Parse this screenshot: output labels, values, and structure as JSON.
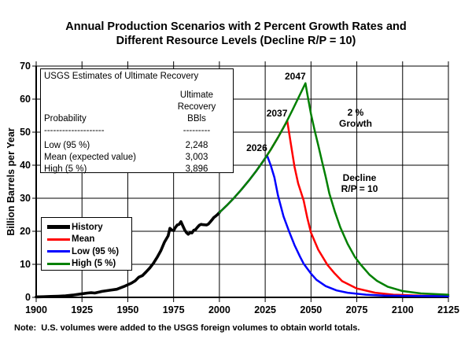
{
  "title": {
    "line1": "Annual Production Scenarios with 2 Percent Growth Rates and",
    "line2": "Different Resource Levels (Decline R/P = 10)"
  },
  "y_axis_label": "Billion Barrels per Year",
  "info_box": {
    "title": "USGS Estimates of Ultimate Recovery",
    "col1_header": "Probability",
    "col2_header_line1": "Ultimate Recovery",
    "col2_header_line2": "BBls",
    "col1_dashes": "--------------------",
    "col2_dashes": "---------",
    "rows": [
      {
        "label": "Low (95 %)",
        "value": "2,248"
      },
      {
        "label": "Mean (expected value)",
        "value": "3,003"
      },
      {
        "label": "High (5 %)",
        "value": "3,896"
      }
    ]
  },
  "legend": {
    "items": [
      {
        "label": "History",
        "color": "#000000",
        "thickness": 5
      },
      {
        "label": "Mean",
        "color": "#FF0000",
        "thickness": 3
      },
      {
        "label": "Low (95 %)",
        "color": "#0000FF",
        "thickness": 3
      },
      {
        "label": "High (5 %)",
        "color": "#008000",
        "thickness": 3
      }
    ]
  },
  "annotations": {
    "growth_line1": "2 %",
    "growth_line2": "Growth",
    "decline_line1": "Decline",
    "decline_line2": "R/P = 10"
  },
  "note": "Note:  U.S. volumes were added to the USGS foreign volumes to obtain world totals.",
  "colors": {
    "history": "#000000",
    "mean": "#FF0000",
    "low": "#0000FF",
    "high": "#008000",
    "grid": "#000000",
    "axis": "#000000"
  },
  "chart_data": {
    "type": "line",
    "title": "Annual Production Scenarios with 2 Percent Growth Rates and Different Resource Levels (Decline R/P = 10)",
    "xlabel": "",
    "ylabel": "Billion Barrels per Year",
    "xlim": [
      1900,
      2125
    ],
    "ylim": [
      0,
      70
    ],
    "x_ticks": [
      1900,
      1925,
      1950,
      1975,
      2000,
      2025,
      2050,
      2075,
      2100,
      2125
    ],
    "y_ticks": [
      0,
      10,
      20,
      30,
      40,
      50,
      60,
      70
    ],
    "grid": true,
    "legend_position": "middle-left",
    "growth_rate_percent": 2,
    "decline_rp_ratio": 10,
    "series": [
      {
        "name": "History",
        "color": "#000000",
        "width": 3.6,
        "points": [
          [
            1900,
            0.15
          ],
          [
            1904,
            0.2
          ],
          [
            1908,
            0.28
          ],
          [
            1912,
            0.35
          ],
          [
            1916,
            0.45
          ],
          [
            1920,
            0.7
          ],
          [
            1924,
            1.0
          ],
          [
            1928,
            1.3
          ],
          [
            1930,
            1.4
          ],
          [
            1932,
            1.3
          ],
          [
            1936,
            1.8
          ],
          [
            1940,
            2.15
          ],
          [
            1944,
            2.45
          ],
          [
            1948,
            3.3
          ],
          [
            1950,
            3.8
          ],
          [
            1952,
            4.3
          ],
          [
            1954,
            5.0
          ],
          [
            1956,
            6.1
          ],
          [
            1958,
            6.6
          ],
          [
            1960,
            7.7
          ],
          [
            1962,
            8.9
          ],
          [
            1964,
            10.3
          ],
          [
            1966,
            12.1
          ],
          [
            1968,
            14.1
          ],
          [
            1970,
            16.7
          ],
          [
            1972,
            18.6
          ],
          [
            1973,
            20.9
          ],
          [
            1974,
            20.4
          ],
          [
            1975,
            20.2
          ],
          [
            1976,
            21.2
          ],
          [
            1977,
            21.9
          ],
          [
            1978,
            22.1
          ],
          [
            1979,
            22.9
          ],
          [
            1980,
            21.7
          ],
          [
            1981,
            20.5
          ],
          [
            1982,
            19.6
          ],
          [
            1983,
            19.1
          ],
          [
            1984,
            19.6
          ],
          [
            1985,
            19.5
          ],
          [
            1986,
            20.3
          ],
          [
            1987,
            20.5
          ],
          [
            1988,
            21.2
          ],
          [
            1989,
            21.8
          ],
          [
            1990,
            22.1
          ],
          [
            1991,
            22.0
          ],
          [
            1993,
            21.9
          ],
          [
            1994,
            22.2
          ],
          [
            1995,
            22.8
          ],
          [
            1996,
            23.5
          ],
          [
            1997,
            24.2
          ],
          [
            1998,
            24.6
          ],
          [
            1999,
            25.1
          ],
          [
            2000,
            25.7
          ]
        ]
      },
      {
        "name": "Mean",
        "color": "#FF0000",
        "width": 2.5,
        "peak_label": "2037",
        "peak_year": 2037,
        "peak_value": 53.5,
        "points": [
          [
            2000,
            25.7
          ],
          [
            2004,
            27.8
          ],
          [
            2008,
            30.1
          ],
          [
            2012,
            32.6
          ],
          [
            2016,
            35.3
          ],
          [
            2020,
            38.2
          ],
          [
            2024,
            41.3
          ],
          [
            2028,
            44.7
          ],
          [
            2032,
            48.4
          ],
          [
            2035,
            51.4
          ],
          [
            2037,
            53.5
          ],
          [
            2038,
            50.0
          ],
          [
            2039,
            46.5
          ],
          [
            2041,
            39.5
          ],
          [
            2043,
            34.5
          ],
          [
            2046,
            29.3
          ],
          [
            2048,
            24.0
          ],
          [
            2050,
            19.6
          ],
          [
            2054,
            14.4
          ],
          [
            2059,
            9.8
          ],
          [
            2063,
            7.2
          ],
          [
            2067,
            4.9
          ],
          [
            2075,
            2.7
          ],
          [
            2085,
            1.4
          ],
          [
            2095,
            0.8
          ],
          [
            2110,
            0.5
          ],
          [
            2125,
            0.4
          ]
        ]
      },
      {
        "name": "Low (95 %)",
        "color": "#0000FF",
        "width": 2.5,
        "peak_label": "2026",
        "peak_year": 2026,
        "peak_value": 43.0,
        "points": [
          [
            2000,
            25.7
          ],
          [
            2004,
            27.8
          ],
          [
            2008,
            30.1
          ],
          [
            2012,
            32.6
          ],
          [
            2016,
            35.3
          ],
          [
            2020,
            38.2
          ],
          [
            2023,
            40.5
          ],
          [
            2026,
            43.0
          ],
          [
            2028,
            40.0
          ],
          [
            2030,
            36.3
          ],
          [
            2032,
            30.8
          ],
          [
            2035,
            24.5
          ],
          [
            2038,
            20.0
          ],
          [
            2041,
            15.8
          ],
          [
            2044,
            12.3
          ],
          [
            2046,
            10.2
          ],
          [
            2050,
            7.2
          ],
          [
            2053,
            5.3
          ],
          [
            2058,
            3.4
          ],
          [
            2064,
            2.1
          ],
          [
            2070,
            1.4
          ],
          [
            2080,
            0.8
          ],
          [
            2090,
            0.55
          ],
          [
            2100,
            0.45
          ],
          [
            2125,
            0.35
          ]
        ]
      },
      {
        "name": "High (5 %)",
        "color": "#008000",
        "width": 2.5,
        "peak_label": "2047",
        "peak_year": 2047,
        "peak_value": 64.8,
        "points": [
          [
            2000,
            25.7
          ],
          [
            2004,
            27.8
          ],
          [
            2008,
            30.1
          ],
          [
            2012,
            32.6
          ],
          [
            2016,
            35.3
          ],
          [
            2020,
            38.2
          ],
          [
            2024,
            41.3
          ],
          [
            2028,
            44.7
          ],
          [
            2032,
            48.4
          ],
          [
            2036,
            52.4
          ],
          [
            2040,
            56.8
          ],
          [
            2044,
            61.4
          ],
          [
            2047,
            64.8
          ],
          [
            2048,
            61.5
          ],
          [
            2050,
            55.5
          ],
          [
            2052,
            50.5
          ],
          [
            2054,
            46.0
          ],
          [
            2056,
            41.2
          ],
          [
            2058,
            36.5
          ],
          [
            2060,
            31.5
          ],
          [
            2063,
            26.0
          ],
          [
            2066,
            21.2
          ],
          [
            2070,
            16.2
          ],
          [
            2074,
            12.2
          ],
          [
            2077,
            10.0
          ],
          [
            2082,
            6.8
          ],
          [
            2086,
            5.0
          ],
          [
            2092,
            3.2
          ],
          [
            2100,
            1.9
          ],
          [
            2110,
            1.2
          ],
          [
            2125,
            0.8
          ]
        ]
      }
    ]
  }
}
